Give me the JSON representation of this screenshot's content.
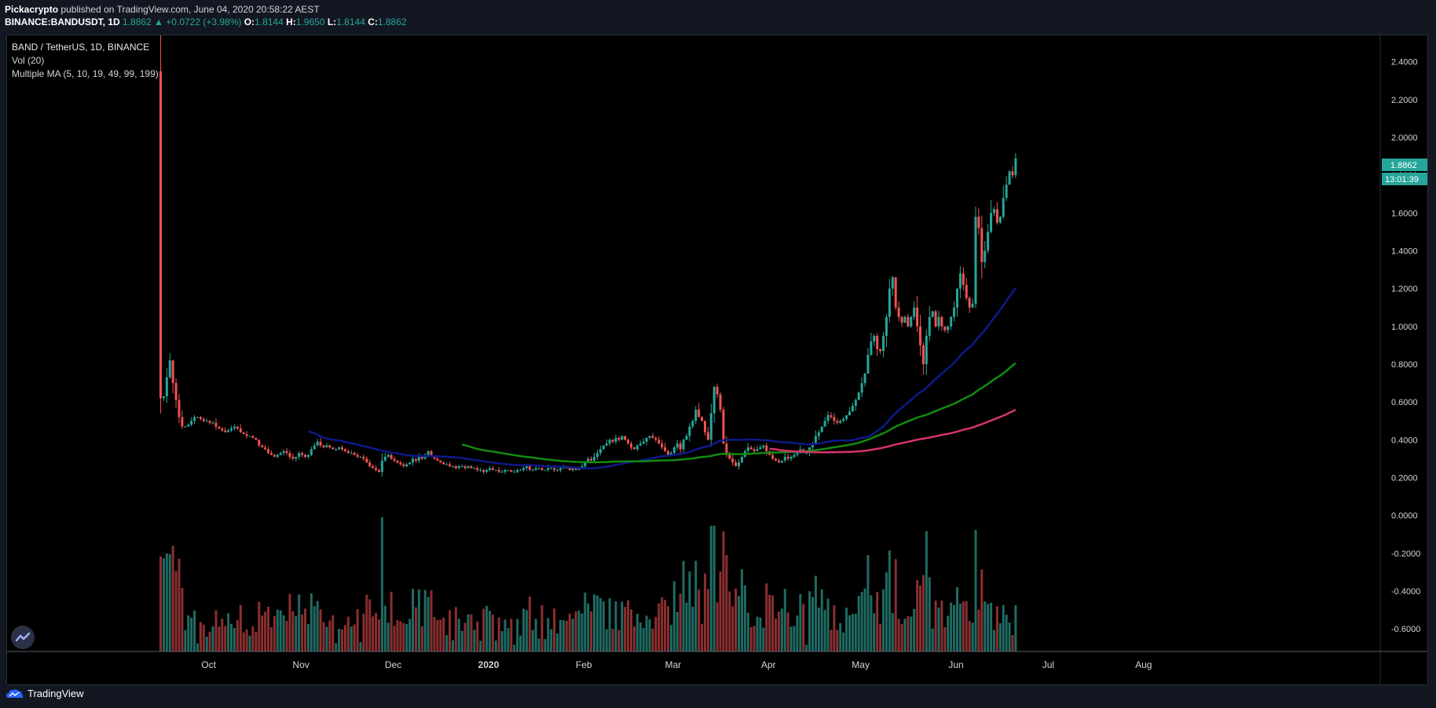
{
  "header": {
    "author": "Pickacrypto",
    "published_text": "published on TradingView.com, June 04, 2020 20:58:22 AEST",
    "symbol": "BINANCE:BANDUSDT, 1D",
    "last": "1.8862",
    "change": "+0.0722 (+3.98%)",
    "o_label": "O:",
    "o_value": "1.8144",
    "h_label": "H:",
    "h_value": "1.9650",
    "l_label": "L:",
    "l_value": "1.8144",
    "c_label": "C:",
    "c_value": "1.8862"
  },
  "legend": {
    "title": "BAND / TetherUS, 1D, BINANCE",
    "vol": "Vol (20)",
    "ma": "Multiple MA (5, 10, 19, 49, 99, 199)"
  },
  "price_tag": "1.8862",
  "countdown_tag": "13:01:39",
  "footer": {
    "brand": "TradingView"
  },
  "colors": {
    "up": "#26a69a",
    "down": "#ef5350",
    "vol_up": "#1f6b63",
    "vol_down": "#8b2f2f",
    "ma_blue": "#0d1a8a",
    "ma_green": "#138a0f",
    "ma_pink": "#d6336c",
    "tag": "#26a69a"
  },
  "chart_data": {
    "type": "candlestick",
    "y_ticks": [
      "2.4000",
      "2.2000",
      "2.0000",
      "1.8000",
      "1.6000",
      "1.4000",
      "1.2000",
      "1.0000",
      "0.8000",
      "0.6000",
      "0.4000",
      "0.2000",
      "0.0000",
      "-0.2000",
      "-0.4000",
      "-0.6000"
    ],
    "y_tick_values": [
      2.4,
      2.2,
      2.0,
      1.8,
      1.6,
      1.4,
      1.2,
      1.0,
      0.8,
      0.6,
      0.4,
      0.2,
      0.0,
      -0.2,
      -0.4,
      -0.6
    ],
    "ylim": [
      -0.72,
      2.54
    ],
    "x_ticks": [
      {
        "label": "Oct",
        "day": 16
      },
      {
        "label": "Nov",
        "day": 46
      },
      {
        "label": "Dec",
        "day": 76
      },
      {
        "label": "2020",
        "day": 107,
        "bold": true
      },
      {
        "label": "Feb",
        "day": 138
      },
      {
        "label": "Mar",
        "day": 167
      },
      {
        "label": "Apr",
        "day": 198
      },
      {
        "label": "May",
        "day": 228
      },
      {
        "label": "Jun",
        "day": 259
      },
      {
        "label": "Jul",
        "day": 289
      },
      {
        "label": "Aug",
        "day": 320
      }
    ],
    "xlim": [
      -48,
      374
    ],
    "first_day_label": "Sep 2019 (first candle)",
    "close": [
      0.62,
      0.63,
      0.73,
      0.82,
      0.7,
      0.61,
      0.52,
      0.47,
      0.47,
      0.48,
      0.5,
      0.52,
      0.52,
      0.51,
      0.5,
      0.5,
      0.49,
      0.49,
      0.47,
      0.46,
      0.45,
      0.44,
      0.45,
      0.46,
      0.47,
      0.46,
      0.44,
      0.43,
      0.42,
      0.42,
      0.41,
      0.4,
      0.37,
      0.36,
      0.35,
      0.33,
      0.32,
      0.31,
      0.32,
      0.33,
      0.34,
      0.33,
      0.31,
      0.3,
      0.31,
      0.33,
      0.32,
      0.31,
      0.32,
      0.35,
      0.37,
      0.39,
      0.37,
      0.36,
      0.37,
      0.36,
      0.35,
      0.35,
      0.36,
      0.35,
      0.34,
      0.33,
      0.33,
      0.32,
      0.31,
      0.31,
      0.3,
      0.28,
      0.26,
      0.25,
      0.24,
      0.23,
      0.29,
      0.31,
      0.32,
      0.3,
      0.29,
      0.28,
      0.27,
      0.26,
      0.27,
      0.28,
      0.3,
      0.29,
      0.31,
      0.3,
      0.32,
      0.34,
      0.31,
      0.3,
      0.29,
      0.28,
      0.27,
      0.27,
      0.26,
      0.26,
      0.25,
      0.26,
      0.26,
      0.25,
      0.26,
      0.25,
      0.25,
      0.24,
      0.24,
      0.23,
      0.24,
      0.25,
      0.24,
      0.24,
      0.23,
      0.23,
      0.24,
      0.24,
      0.23,
      0.23,
      0.24,
      0.24,
      0.25,
      0.26,
      0.24,
      0.24,
      0.25,
      0.25,
      0.24,
      0.24,
      0.25,
      0.25,
      0.24,
      0.24,
      0.25,
      0.26,
      0.25,
      0.24,
      0.25,
      0.24,
      0.25,
      0.26,
      0.28,
      0.3,
      0.29,
      0.31,
      0.33,
      0.35,
      0.37,
      0.38,
      0.4,
      0.39,
      0.41,
      0.4,
      0.42,
      0.4,
      0.38,
      0.36,
      0.35,
      0.37,
      0.38,
      0.39,
      0.41,
      0.42,
      0.41,
      0.4,
      0.38,
      0.36,
      0.34,
      0.32,
      0.33,
      0.36,
      0.38,
      0.35,
      0.4,
      0.42,
      0.47,
      0.5,
      0.56,
      0.52,
      0.5,
      0.44,
      0.4,
      0.54,
      0.68,
      0.64,
      0.56,
      0.38,
      0.32,
      0.3,
      0.28,
      0.26,
      0.28,
      0.31,
      0.34,
      0.36,
      0.35,
      0.34,
      0.35,
      0.36,
      0.37,
      0.34,
      0.32,
      0.3,
      0.29,
      0.28,
      0.29,
      0.31,
      0.3,
      0.31,
      0.32,
      0.33,
      0.35,
      0.33,
      0.33,
      0.36,
      0.38,
      0.42,
      0.44,
      0.47,
      0.5,
      0.53,
      0.52,
      0.5,
      0.49,
      0.5,
      0.51,
      0.53,
      0.55,
      0.58,
      0.61,
      0.65,
      0.7,
      0.75,
      0.85,
      0.92,
      0.95,
      0.88,
      0.87,
      0.95,
      1.05,
      1.2,
      1.26,
      1.1,
      1.05,
      1.02,
      1.05,
      1.0,
      1.05,
      1.1,
      1.0,
      0.9,
      0.8,
      0.95,
      1.05,
      1.08,
      1.0,
      1.05,
      1.0,
      0.98,
      1.0,
      1.05,
      1.1,
      1.2,
      1.28,
      1.22,
      1.15,
      1.1,
      1.12,
      1.58,
      1.52,
      1.34,
      1.4,
      1.5,
      1.6,
      1.62,
      1.55,
      1.58,
      1.68,
      1.75,
      1.82,
      1.8,
      1.89
    ],
    "volume_label": "Vol (20)",
    "moving_averages": [
      "MA 5",
      "MA 10",
      "MA 19",
      "MA 49",
      "MA 99",
      "MA 199"
    ]
  }
}
